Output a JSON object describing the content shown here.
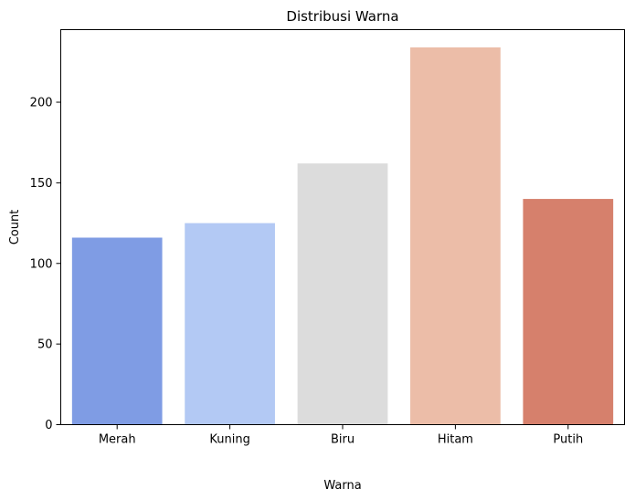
{
  "chart_data": {
    "type": "bar",
    "title": "Distribusi Warna",
    "xlabel": "Warna",
    "ylabel": "Count",
    "categories": [
      "Merah",
      "Kuning",
      "Biru",
      "Hitam",
      "Putih"
    ],
    "values": [
      116,
      125,
      162,
      234,
      140
    ],
    "colors": [
      "#7f9ce4",
      "#b3c9f4",
      "#dcdcdc",
      "#ecbda8",
      "#d6806c"
    ],
    "ylim": [
      0,
      245
    ],
    "yticks": [
      0,
      50,
      100,
      150,
      200
    ],
    "grid": false,
    "legend": "none"
  }
}
